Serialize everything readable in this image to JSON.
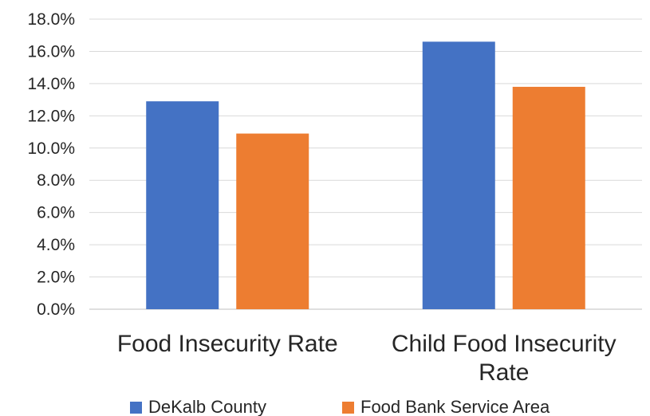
{
  "chart_data": {
    "type": "bar",
    "categories": [
      [
        "Food Insecurity Rate"
      ],
      [
        "Child Food Insecurity",
        "Rate"
      ]
    ],
    "series": [
      {
        "name": "DeKalb County",
        "values": [
          12.9,
          16.6
        ],
        "color": "#4472C4"
      },
      {
        "name": "Food Bank Service Area",
        "values": [
          10.9,
          13.8
        ],
        "color": "#ED7D31"
      }
    ],
    "ylim": [
      0,
      18
    ],
    "yticks": [
      "0.0%",
      "2.0%",
      "4.0%",
      "6.0%",
      "8.0%",
      "10.0%",
      "12.0%",
      "14.0%",
      "16.0%",
      "18.0%"
    ],
    "grid": true,
    "legend_position": "bottom"
  }
}
